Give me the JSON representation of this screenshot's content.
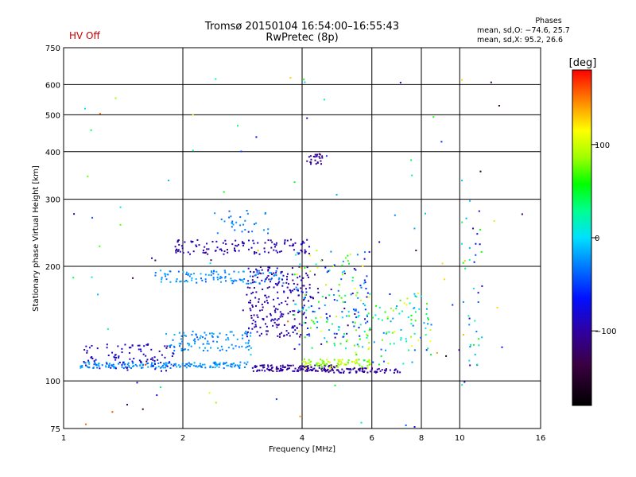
{
  "header": {
    "title_line1": "Tromsø 20150104 16:54:00–16:55:43",
    "title_line2": "RwPretec (8p)",
    "hv_status": "HV Off",
    "phases_title": "Phases",
    "phases_o": "mean, sd,O: −74.6, 25.7",
    "phases_x": "mean, sd,X:  95.2, 26.6"
  },
  "colorbar": {
    "unit_label": "[deg]",
    "ticks": [
      {
        "value": 100,
        "label": "100"
      },
      {
        "value": 0,
        "label": "0"
      },
      {
        "value": -100,
        "label": "−100"
      }
    ],
    "range": [
      -180,
      180
    ]
  },
  "chart_data": {
    "type": "scatter",
    "title": "Tromsø 20150104 16:54:00–16:55:43",
    "subtitle": "RwPretec (8p)",
    "xlabel": "Frequency [MHz]",
    "ylabel": "Stationary phase Virtual Height [km]",
    "x_scale": "log",
    "y_scale": "log",
    "xlim": [
      1,
      16
    ],
    "ylim": [
      75,
      750
    ],
    "x_ticks": [
      1,
      2,
      4,
      6,
      8,
      10,
      16
    ],
    "x_tick_labels": [
      "1",
      "2",
      "4",
      "6",
      "8",
      "10",
      "16"
    ],
    "y_ticks": [
      75,
      100,
      200,
      300,
      400,
      500,
      600,
      750
    ],
    "y_tick_labels": [
      "75",
      "100",
      "200",
      "300",
      "400",
      "500",
      "600",
      "750"
    ],
    "grid": true,
    "color_scale": "phase [deg]",
    "clusters": [
      {
        "name": "E-trace cyan",
        "fmin": 1.1,
        "fmax": 2.9,
        "h": [
          108,
          112
        ],
        "phase": [
          -40,
          -10
        ]
      },
      {
        "name": "E-trace blue",
        "fmin": 1.1,
        "fmax": 1.9,
        "h": [
          106,
          125
        ],
        "phase": [
          -100,
          -80
        ]
      },
      {
        "name": "Es low blue",
        "fmin": 3.0,
        "fmax": 4.9,
        "h": [
          106,
          110
        ],
        "phase": [
          -120,
          -90
        ]
      },
      {
        "name": "Es yellow",
        "fmin": 4.0,
        "fmax": 6.0,
        "h": [
          108,
          114
        ],
        "phase": [
          70,
          110
        ]
      },
      {
        "name": "Es blue tail",
        "fmin": 4.5,
        "fmax": 7.2,
        "h": [
          105,
          108
        ],
        "phase": [
          -110,
          -90
        ]
      },
      {
        "name": "lower-F cyan",
        "fmin": 1.7,
        "fmax": 3.6,
        "h": [
          180,
          195
        ],
        "phase": [
          -40,
          -10
        ]
      },
      {
        "name": "mid cyan",
        "fmin": 1.8,
        "fmax": 3.0,
        "h": [
          120,
          135
        ],
        "phase": [
          -40,
          -10
        ]
      },
      {
        "name": "F blue band",
        "fmin": 1.9,
        "fmax": 4.2,
        "h": [
          215,
          235
        ],
        "phase": [
          -110,
          -80
        ]
      },
      {
        "name": "F scatter blue",
        "fmin": 2.9,
        "fmax": 4.2,
        "h": [
          130,
          200
        ],
        "phase": [
          -110,
          -80
        ]
      },
      {
        "name": "F scatter mixed",
        "fmin": 3.8,
        "fmax": 6.0,
        "h": [
          120,
          220
        ],
        "phase": [
          -120,
          120
        ]
      },
      {
        "name": "upper mixed",
        "fmin": 5.0,
        "fmax": 8.5,
        "h": [
          110,
          170
        ],
        "phase": [
          -60,
          120
        ]
      },
      {
        "name": "high cluster 390",
        "fmin": 4.1,
        "fmax": 4.5,
        "h": [
          370,
          395
        ],
        "phase": [
          -120,
          -100
        ]
      },
      {
        "name": "sporadic high",
        "fmin": 1.05,
        "fmax": 14.5,
        "h": [
          75,
          650
        ],
        "phase": [
          -160,
          160
        ]
      },
      {
        "name": "cyan 200-300",
        "fmin": 2.4,
        "fmax": 3.3,
        "h": [
          240,
          280
        ],
        "phase": [
          -40,
          -20
        ]
      },
      {
        "name": "right 200 column",
        "fmin": 10.1,
        "fmax": 11.4,
        "h": [
          95,
          300
        ],
        "phase": [
          -100,
          60
        ]
      }
    ]
  }
}
